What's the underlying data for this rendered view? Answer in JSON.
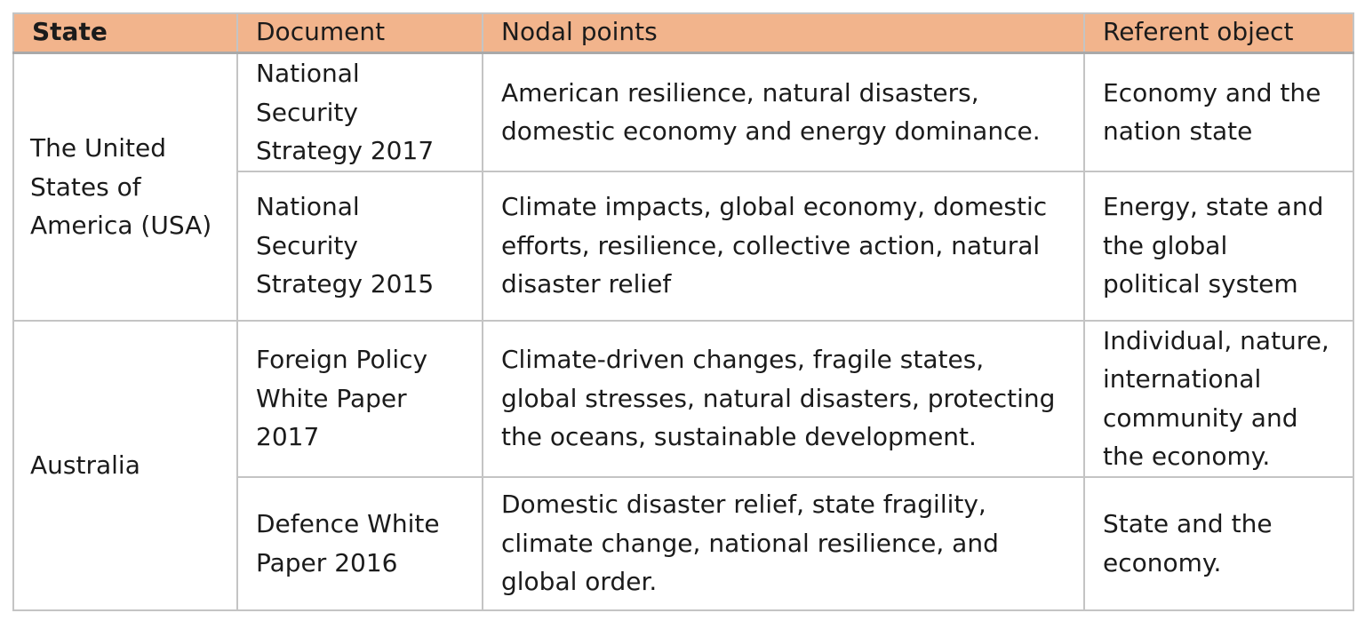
{
  "table": {
    "headers": {
      "state": "State",
      "document": "Document",
      "nodal_points": "Nodal points",
      "referent_object": "Referent object"
    },
    "groups": [
      {
        "state_lines": [
          "The United",
          "States of",
          "America (USA)"
        ],
        "rows": [
          {
            "document_lines": [
              "National",
              "Security",
              "Strategy 2017"
            ],
            "nodal_lines": [
              "American resilience, natural disasters,",
              "domestic economy and energy dominance."
            ],
            "referent_lines": [
              "Economy and the",
              "nation state"
            ]
          },
          {
            "document_lines": [
              "National",
              "Security",
              "Strategy 2015"
            ],
            "nodal_lines": [
              "Climate impacts, global economy, domestic",
              "efforts, resilience, collective action, natural",
              "disaster relief"
            ],
            "referent_lines": [
              "Energy, state and",
              "the global",
              "political system"
            ]
          }
        ]
      },
      {
        "state_lines": [
          "Australia"
        ],
        "rows": [
          {
            "document_lines": [
              "Foreign Policy",
              "White Paper",
              "2017"
            ],
            "nodal_lines": [
              "Climate-driven changes, fragile states,",
              "global stresses, natural disasters, protecting",
              "the oceans, sustainable development."
            ],
            "referent_lines": [
              "Individual, nature,",
              "international",
              "community and",
              "the economy."
            ]
          },
          {
            "document_lines": [
              "Defence White",
              "Paper 2016"
            ],
            "nodal_lines": [
              "Domestic disaster relief, state fragility,",
              "climate change, national resilience, and",
              "global order."
            ],
            "referent_lines": [
              "State and the",
              "economy."
            ]
          }
        ]
      }
    ]
  }
}
